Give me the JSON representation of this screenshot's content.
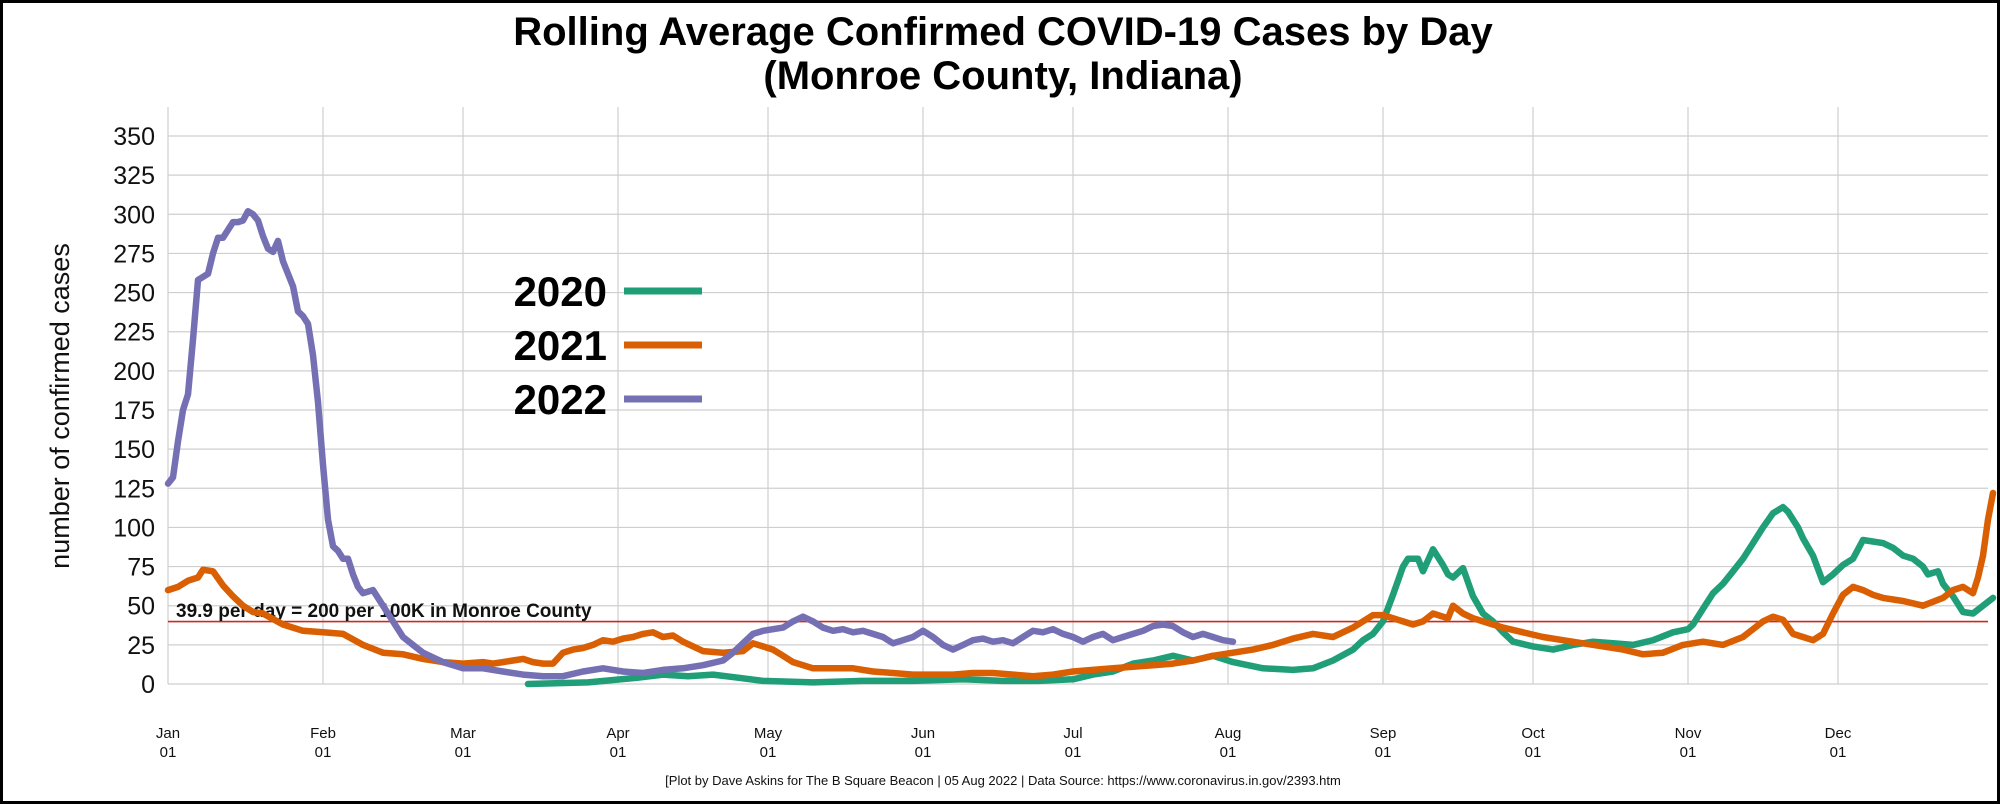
{
  "chart_data": {
    "type": "line",
    "title_line1": "Rolling Average Confirmed COVID-19 Cases by Day",
    "title_line2": "(Monroe County, Indiana)",
    "ylabel": "number of confirmed cases",
    "xlabel": "",
    "ylim": [
      0,
      360
    ],
    "yticks": [
      0,
      25,
      50,
      75,
      100,
      125,
      150,
      175,
      200,
      225,
      250,
      275,
      300,
      325,
      350
    ],
    "xlim": [
      1,
      366
    ],
    "xticks": [
      {
        "day": 1,
        "month": "Jan",
        "date": "01"
      },
      {
        "day": 32,
        "month": "Feb",
        "date": "01"
      },
      {
        "day": 60,
        "month": "Mar",
        "date": "01"
      },
      {
        "day": 91,
        "month": "Apr",
        "date": "01"
      },
      {
        "day": 121,
        "month": "May",
        "date": "01"
      },
      {
        "day": 152,
        "month": "Jun",
        "date": "01"
      },
      {
        "day": 182,
        "month": "Jul",
        "date": "01"
      },
      {
        "day": 213,
        "month": "Aug",
        "date": "01"
      },
      {
        "day": 244,
        "month": "Sep",
        "date": "01"
      },
      {
        "day": 274,
        "month": "Oct",
        "date": "01"
      },
      {
        "day": 305,
        "month": "Nov",
        "date": "01"
      },
      {
        "day": 335,
        "month": "Dec",
        "date": "01"
      }
    ],
    "grid": true,
    "legend_position": "upper-left",
    "reference_line": {
      "value": 39.9,
      "label": "39.9 per day = 200 per 100K in Monroe County",
      "color": "#cc2a1f"
    },
    "caption": "[Plot by Dave Askins for The B Square Beacon | 05 Aug 2022 | Data Source: https://www.coronavirus.in.gov/2393.htm",
    "series": [
      {
        "name": "2020",
        "color": "#1f9e77",
        "x": [
          73,
          85,
          95,
          100,
          105,
          110,
          115,
          120,
          130,
          140,
          150,
          160,
          168,
          175,
          182,
          186,
          190,
          194,
          198,
          202,
          206,
          210,
          214,
          220,
          226,
          230,
          234,
          238,
          240,
          242,
          244,
          246,
          248,
          249,
          251,
          252,
          253,
          254,
          256,
          257,
          258,
          260,
          262,
          264,
          266,
          268,
          270,
          274,
          278,
          282,
          286,
          290,
          294,
          298,
          302,
          305,
          306,
          308,
          310,
          312,
          314,
          316,
          318,
          320,
          322,
          324,
          325,
          326,
          327,
          328,
          330,
          332,
          334,
          336,
          338,
          340,
          344,
          346,
          348,
          350,
          352,
          353,
          355,
          356,
          358,
          360,
          362,
          364,
          366
        ],
        "values": [
          0,
          1,
          4,
          6,
          5,
          6,
          4,
          2,
          1,
          2,
          2,
          3,
          2,
          2,
          3,
          6,
          8,
          13,
          15,
          18,
          15,
          18,
          14,
          10,
          9,
          10,
          15,
          22,
          28,
          32,
          40,
          57,
          75,
          80,
          80,
          72,
          79,
          86,
          76,
          70,
          68,
          74,
          56,
          45,
          40,
          33,
          27,
          24,
          22,
          25,
          27,
          26,
          25,
          28,
          33,
          35,
          38,
          48,
          58,
          64,
          72,
          80,
          90,
          100,
          109,
          113,
          110,
          105,
          100,
          93,
          82,
          65,
          70,
          76,
          80,
          92,
          90,
          87,
          82,
          80,
          75,
          70,
          72,
          64,
          56,
          46,
          45,
          50,
          55
        ]
      },
      {
        "name": "2021",
        "color": "#d95f02",
        "x": [
          1,
          3,
          5,
          7,
          8,
          10,
          12,
          14,
          16,
          18,
          20,
          24,
          28,
          32,
          36,
          40,
          44,
          48,
          52,
          56,
          60,
          64,
          66,
          68,
          70,
          72,
          74,
          76,
          78,
          80,
          82,
          84,
          86,
          88,
          90,
          92,
          94,
          96,
          98,
          100,
          102,
          104,
          108,
          112,
          116,
          118,
          120,
          122,
          124,
          126,
          128,
          130,
          134,
          138,
          142,
          146,
          150,
          154,
          158,
          162,
          166,
          170,
          174,
          178,
          182,
          186,
          190,
          194,
          198,
          202,
          206,
          210,
          214,
          218,
          222,
          226,
          230,
          234,
          238,
          242,
          244,
          246,
          248,
          250,
          252,
          254,
          256,
          257,
          258,
          260,
          262,
          264,
          268,
          272,
          276,
          280,
          284,
          288,
          292,
          296,
          300,
          304,
          308,
          312,
          316,
          318,
          320,
          322,
          324,
          326,
          328,
          330,
          332,
          334,
          336,
          338,
          340,
          342,
          344,
          348,
          352,
          356,
          358,
          360,
          362,
          363,
          364,
          365,
          366
        ],
        "values": [
          60,
          62,
          66,
          68,
          73,
          72,
          63,
          56,
          50,
          46,
          45,
          38,
          34,
          33,
          32,
          25,
          20,
          19,
          16,
          14,
          13,
          14,
          13,
          14,
          15,
          16,
          14,
          13,
          13,
          20,
          22,
          23,
          25,
          28,
          27,
          29,
          30,
          32,
          33,
          30,
          31,
          27,
          21,
          20,
          21,
          26,
          24,
          22,
          18,
          14,
          12,
          10,
          10,
          10,
          8,
          7,
          6,
          6,
          6,
          7,
          7,
          6,
          5,
          6,
          8,
          9,
          10,
          11,
          12,
          13,
          15,
          18,
          20,
          22,
          25,
          29,
          32,
          30,
          36,
          44,
          44,
          42,
          40,
          38,
          40,
          45,
          43,
          42,
          50,
          45,
          42,
          40,
          36,
          33,
          30,
          28,
          26,
          24,
          22,
          19,
          20,
          25,
          27,
          25,
          30,
          35,
          40,
          43,
          41,
          32,
          30,
          28,
          32,
          45,
          57,
          62,
          60,
          57,
          55,
          53,
          50,
          55,
          60,
          62,
          58,
          68,
          82,
          105,
          122
        ]
      },
      {
        "name": "2022",
        "color": "#7570b3",
        "x": [
          1,
          2,
          3,
          4,
          5,
          6,
          7,
          8,
          9,
          10,
          11,
          12,
          13,
          14,
          15,
          16,
          17,
          18,
          19,
          20,
          21,
          22,
          23,
          24,
          25,
          26,
          27,
          28,
          29,
          30,
          31,
          32,
          33,
          34,
          35,
          36,
          37,
          38,
          39,
          40,
          42,
          44,
          46,
          48,
          50,
          52,
          54,
          56,
          58,
          60,
          64,
          68,
          72,
          76,
          80,
          84,
          88,
          92,
          96,
          100,
          104,
          108,
          112,
          114,
          116,
          118,
          120,
          122,
          124,
          126,
          128,
          130,
          132,
          134,
          136,
          138,
          140,
          142,
          144,
          146,
          148,
          150,
          152,
          154,
          156,
          158,
          160,
          162,
          164,
          166,
          168,
          170,
          172,
          174,
          176,
          178,
          180,
          182,
          184,
          186,
          188,
          190,
          192,
          194,
          196,
          198,
          200,
          202,
          204,
          206,
          208,
          210,
          212,
          214
        ],
        "values": [
          128,
          132,
          155,
          175,
          185,
          220,
          258,
          260,
          262,
          275,
          285,
          285,
          290,
          295,
          295,
          296,
          302,
          300,
          296,
          286,
          278,
          276,
          283,
          270,
          262,
          254,
          238,
          235,
          230,
          210,
          180,
          140,
          105,
          88,
          85,
          80,
          80,
          70,
          62,
          58,
          60,
          50,
          40,
          30,
          25,
          20,
          17,
          14,
          12,
          10,
          10,
          8,
          6,
          5,
          5,
          8,
          10,
          8,
          7,
          9,
          10,
          12,
          15,
          20,
          26,
          32,
          34,
          35,
          36,
          40,
          43,
          40,
          36,
          34,
          35,
          33,
          34,
          32,
          30,
          26,
          28,
          30,
          34,
          30,
          25,
          22,
          25,
          28,
          29,
          27,
          28,
          26,
          30,
          34,
          33,
          35,
          32,
          30,
          27,
          30,
          32,
          28,
          30,
          32,
          34,
          37,
          38,
          37,
          33,
          30,
          32,
          30,
          28,
          27
        ]
      }
    ]
  }
}
